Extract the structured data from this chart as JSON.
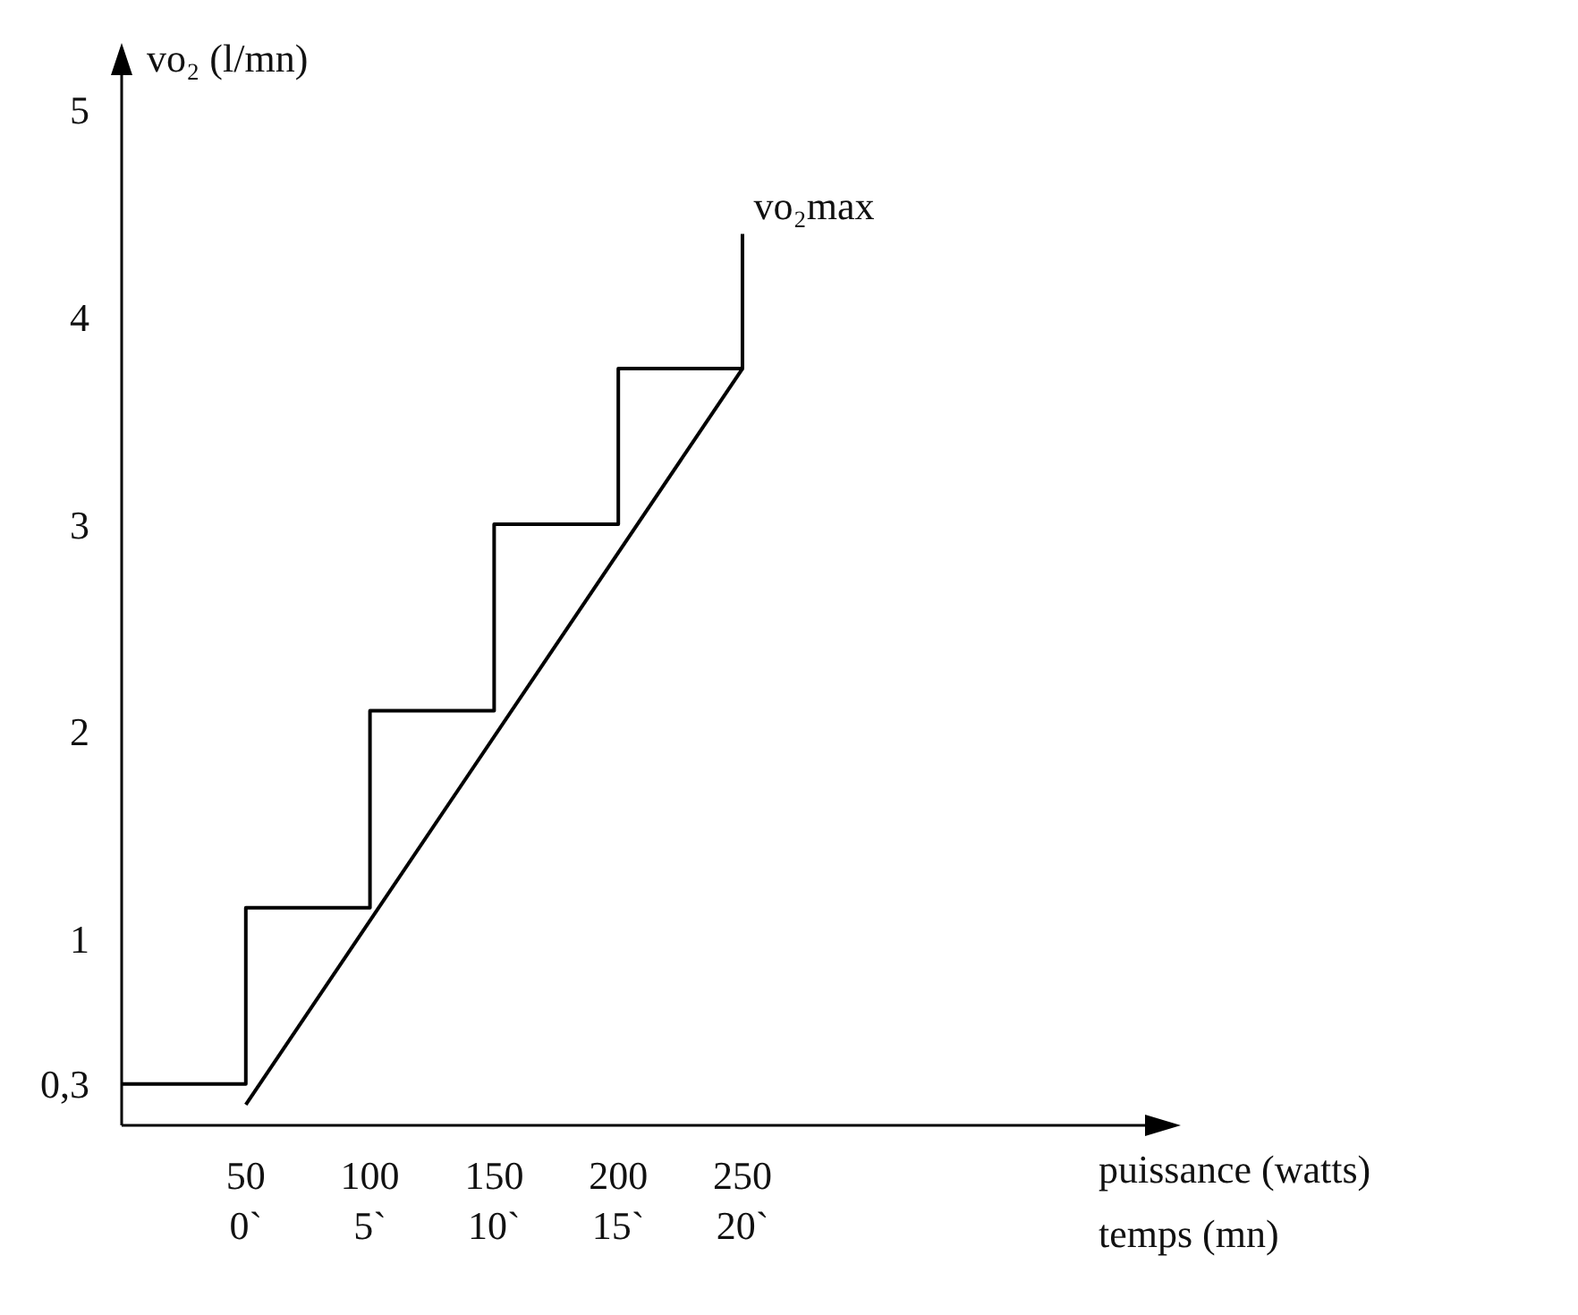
{
  "chart_data": {
    "type": "line",
    "ylabel": "vo₂ (l/mn)",
    "xlabel": "puissance (watts)",
    "x2label": "temps (mn)",
    "xlim": [
      0,
      415
    ],
    "xticks": [
      50,
      100,
      150,
      200,
      250
    ],
    "x2lim": [
      -5,
      36.5
    ],
    "x2ticks": [
      {
        "value": 0,
        "label": "0`"
      },
      {
        "value": 5,
        "label": "5`"
      },
      {
        "value": 10,
        "label": "10`"
      },
      {
        "value": 15,
        "label": "15`"
      },
      {
        "value": 20,
        "label": "20`"
      }
    ],
    "ylim": [
      0.1,
      5.2
    ],
    "yticks": [
      {
        "value": 0.3,
        "label": "0,3"
      },
      1,
      2,
      3,
      4,
      5
    ],
    "grid": false,
    "marker": "none",
    "series": [
      {
        "type": "step",
        "color": "#000000",
        "x": [
          0,
          50,
          100,
          150,
          200,
          250
        ],
        "values": [
          0.3,
          1.15,
          2.1,
          3.0,
          3.75,
          4.4
        ]
      },
      {
        "color": "#000000",
        "x": [
          50,
          250
        ],
        "values": [
          0.2,
          3.75
        ]
      }
    ],
    "annotations": [
      {
        "text": "vo₂max",
        "x": 250,
        "y": 4.4
      }
    ]
  }
}
